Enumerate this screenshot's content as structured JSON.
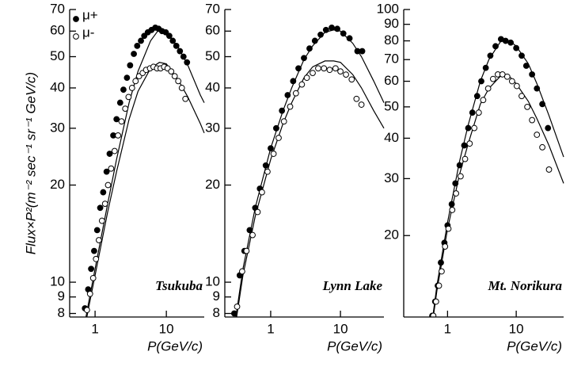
{
  "chart_data": [
    {
      "type": "scatter",
      "annotation": "Tsukuba",
      "x_label": "P(GeV/c)",
      "y_label": "Flux×P²(m⁻² sec⁻¹ sr⁻¹ GeV/c)",
      "xscale": "log",
      "yscale": "log",
      "xlim": [
        0.44,
        34
      ],
      "ylim": [
        7.8,
        70
      ],
      "xticks": [
        1,
        10
      ],
      "yticks": [
        8,
        9,
        10,
        20,
        30,
        40,
        50,
        60,
        70
      ],
      "legend": "upper left",
      "series": [
        {
          "name": "μ+",
          "color": "#000000",
          "marker": "filled",
          "x": [
            0.65,
            0.72,
            0.8,
            0.88,
            0.97,
            1.07,
            1.18,
            1.3,
            1.45,
            1.6,
            1.8,
            2.0,
            2.25,
            2.5,
            2.8,
            3.1,
            3.5,
            3.9,
            4.4,
            4.9,
            5.5,
            6.2,
            7.0,
            7.8,
            8.7,
            9.8,
            11,
            12.3,
            13.8,
            15.5,
            17.4,
            19.5
          ],
          "values": [
            7.4,
            8.3,
            9.5,
            11,
            12.5,
            14.5,
            17,
            19,
            22,
            25,
            28.5,
            32,
            36,
            39.5,
            43,
            47,
            51,
            54,
            56,
            58,
            59.5,
            60.5,
            61.5,
            61,
            60,
            59.5,
            58,
            56,
            54,
            52,
            50,
            48
          ]
        },
        {
          "name": "μ-",
          "color": "#000000",
          "marker": "open",
          "x": [
            0.7,
            0.77,
            0.85,
            0.94,
            1.03,
            1.13,
            1.25,
            1.38,
            1.52,
            1.68,
            1.88,
            2.1,
            2.35,
            2.65,
            2.95,
            3.3,
            3.7,
            4.15,
            4.65,
            5.2,
            5.9,
            6.6,
            7.4,
            8.3,
            9.3,
            10.4,
            11.7,
            13.1,
            14.7,
            16.5,
            18.5
          ],
          "values": [
            7.4,
            8.2,
            9.2,
            10.3,
            11.8,
            13.5,
            15.5,
            17.5,
            20,
            22.5,
            25.5,
            28.5,
            31.5,
            34.5,
            37.5,
            40,
            42,
            43.5,
            44.5,
            45.5,
            46,
            46.5,
            46,
            46,
            46.5,
            46,
            45,
            43.5,
            42,
            40,
            37
          ]
        }
      ],
      "fits": [
        {
          "color": "#000000",
          "x": [
            0.6,
            0.8,
            1,
            1.5,
            2,
            3,
            4,
            6,
            8,
            10,
            15,
            20,
            30,
            34
          ],
          "values": [
            6,
            8.5,
            11,
            17.5,
            24,
            36,
            45,
            56,
            61,
            60,
            53,
            47,
            38,
            36
          ]
        },
        {
          "color": "#000000",
          "x": [
            0.6,
            0.8,
            1,
            1.5,
            2,
            3,
            4,
            6,
            8,
            10,
            15,
            20,
            30,
            34
          ],
          "values": [
            5.8,
            8.2,
            10.5,
            16.5,
            22,
            32,
            39,
            46,
            48,
            47.5,
            42,
            37.5,
            31,
            29
          ]
        }
      ]
    },
    {
      "type": "scatter",
      "annotation": "Lynn Lake",
      "x_label": "P(GeV/c)",
      "xscale": "log",
      "yscale": "log",
      "xlim": [
        0.22,
        42
      ],
      "ylim": [
        7.8,
        70
      ],
      "xticks": [
        1,
        10
      ],
      "yticks": [
        8,
        9,
        10,
        20,
        30,
        40,
        50,
        60,
        70
      ],
      "series": [
        {
          "color": "#000000",
          "marker": "filled",
          "x": [
            0.3,
            0.36,
            0.42,
            0.5,
            0.6,
            0.7,
            0.85,
            1.0,
            1.2,
            1.45,
            1.75,
            2.1,
            2.5,
            3.0,
            3.6,
            4.3,
            5.2,
            6.2,
            7.5,
            9,
            11,
            13.5,
            17.5,
            20.5
          ],
          "values": [
            8,
            10.5,
            12.5,
            14.5,
            17,
            19.5,
            23,
            26,
            30,
            34,
            38,
            42,
            46,
            49.5,
            53,
            56,
            58.5,
            60.5,
            61.5,
            61,
            59,
            57,
            52,
            52
          ]
        },
        {
          "color": "#000000",
          "marker": "open",
          "x": [
            0.33,
            0.39,
            0.45,
            0.55,
            0.65,
            0.75,
            0.9,
            1.1,
            1.3,
            1.55,
            1.9,
            2.3,
            2.8,
            3.3,
            4,
            4.8,
            5.8,
            7,
            8.5,
            10,
            12,
            14.5,
            17,
            20
          ],
          "values": [
            8.4,
            10.8,
            12.5,
            14,
            16.5,
            19,
            22,
            25,
            28,
            31.5,
            35,
            38.5,
            41,
            43,
            44.5,
            46,
            46,
            45.5,
            46,
            45,
            44,
            42.5,
            37,
            35.5
          ]
        }
      ],
      "fits": [
        {
          "color": "#000000",
          "x": [
            0.28,
            0.4,
            0.6,
            1,
            1.5,
            2,
            3,
            4,
            6,
            8,
            10,
            15,
            20,
            30,
            42
          ],
          "values": [
            6.5,
            11,
            17,
            26,
            34,
            40,
            49,
            54,
            59.5,
            60.5,
            60,
            55,
            50,
            42,
            36
          ]
        },
        {
          "color": "#000000",
          "x": [
            0.28,
            0.4,
            0.6,
            1,
            1.5,
            2,
            3,
            4,
            6,
            8,
            10,
            15,
            20,
            30,
            42
          ],
          "values": [
            6.3,
            10.5,
            16,
            24,
            31,
            36,
            43,
            46.5,
            48.5,
            48.5,
            48,
            44,
            40,
            34,
            30
          ]
        }
      ]
    },
    {
      "type": "scatter",
      "annotation": "Mt. Norikura",
      "x_label": "P(GeV/c)",
      "xscale": "log",
      "yscale": "log",
      "xlim": [
        0.23,
        49
      ],
      "ylim": [
        11.2,
        100
      ],
      "xticks": [
        1,
        10
      ],
      "yticks": [
        20,
        30,
        40,
        50,
        60,
        70,
        80,
        90,
        100
      ],
      "series": [
        {
          "color": "#000000",
          "marker": "filled",
          "x": [
            0.6,
            0.66,
            0.72,
            0.8,
            0.9,
            1.0,
            1.15,
            1.3,
            1.5,
            1.75,
            2.0,
            2.3,
            2.7,
            3.1,
            3.6,
            4.2,
            5,
            6,
            7,
            8.3,
            10,
            12,
            14,
            17,
            20,
            24,
            29
          ],
          "values": [
            11.3,
            12.5,
            14,
            16.5,
            19,
            21.5,
            25,
            29,
            33,
            38,
            43,
            48,
            54,
            60,
            66,
            72,
            77,
            81,
            80,
            79,
            76,
            72,
            67,
            63,
            57,
            51,
            43
          ]
        },
        {
          "color": "#000000",
          "marker": "open",
          "x": [
            0.62,
            0.68,
            0.75,
            0.82,
            0.92,
            1.03,
            1.17,
            1.33,
            1.55,
            1.8,
            2.1,
            2.45,
            2.85,
            3.3,
            3.9,
            4.6,
            5.4,
            6.3,
            7.4,
            8.7,
            10.2,
            12,
            14.5,
            17,
            20,
            24,
            30
          ],
          "values": [
            11.3,
            12.5,
            14,
            15.5,
            18.5,
            21,
            24,
            27,
            30.5,
            34.5,
            38.5,
            43,
            48,
            52.5,
            57,
            61,
            63,
            63,
            62,
            60,
            58,
            54,
            50,
            45.5,
            41,
            37.5,
            32
          ]
        }
      ],
      "fits": [
        {
          "color": "#000000",
          "x": [
            0.55,
            0.7,
            1,
            1.5,
            2,
            3,
            4,
            6,
            8,
            10,
            15,
            20,
            30,
            49
          ],
          "values": [
            9.5,
            14,
            22,
            34,
            44,
            60,
            70,
            80,
            80,
            77,
            68,
            59,
            47,
            35
          ]
        },
        {
          "color": "#000000",
          "x": [
            0.55,
            0.7,
            1,
            1.5,
            2,
            3,
            4,
            6,
            8,
            10,
            15,
            20,
            30,
            49
          ],
          "values": [
            9.3,
            13.5,
            21,
            31,
            38.5,
            51,
            57,
            62.5,
            62,
            59,
            52,
            46,
            38,
            29
          ]
        }
      ]
    }
  ]
}
